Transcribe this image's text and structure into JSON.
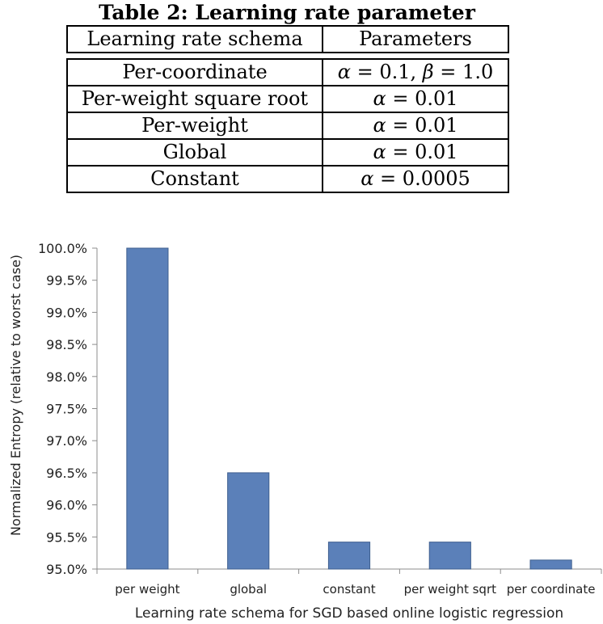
{
  "table": {
    "title": "Table 2: Learning rate parameter",
    "headers": [
      "Learning rate schema",
      "Parameters"
    ],
    "rows": [
      {
        "schema": "Per-coordinate",
        "param_sym": "α",
        "param_value": "0.1",
        "param_sym2": "β",
        "param_value2": "1.0"
      },
      {
        "schema": "Per-weight square root",
        "param_sym": "α",
        "param_value": "0.01"
      },
      {
        "schema": "Per-weight",
        "param_sym": "α",
        "param_value": "0.01"
      },
      {
        "schema": "Global",
        "param_sym": "α",
        "param_value": "0.01"
      },
      {
        "schema": "Constant",
        "param_sym": "α",
        "param_value": "0.0005"
      }
    ]
  },
  "chart_data": {
    "type": "bar",
    "categories": [
      "per weight",
      "global",
      "constant",
      "per weight sqrt",
      "per coordinate"
    ],
    "values": [
      100.0,
      96.5,
      95.42,
      95.42,
      95.14
    ],
    "xlabel": "Learning rate schema for SGD based online logistic regression",
    "ylabel": "Normalized Entropy (relative to worst case)",
    "ylim": [
      95.0,
      100.0
    ],
    "yticks": [
      "95.0%",
      "95.5%",
      "96.0%",
      "96.5%",
      "97.0%",
      "97.5%",
      "98.0%",
      "98.5%",
      "99.0%",
      "99.5%",
      "100.0%"
    ],
    "grid": false,
    "legend": "none",
    "bar_color": "#5b80b9",
    "bar_edge_color": "#3f5f8f"
  }
}
